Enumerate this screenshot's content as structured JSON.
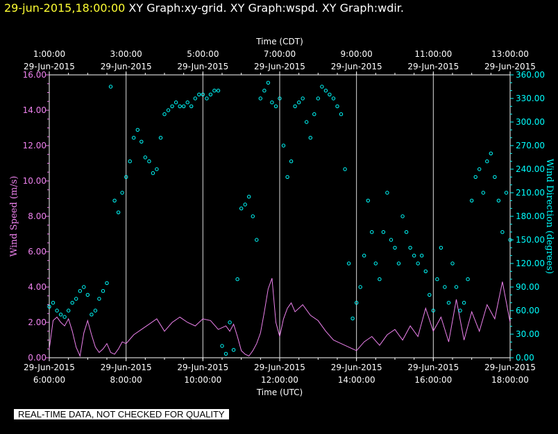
{
  "header": {
    "datetime": "29-jun-2015,18:00:00",
    "graphs": "XY Graph:xy-grid.  XY Graph:wspd.  XY Graph:wdir."
  },
  "notice": "REAL-TIME DATA, NOT CHECKED FOR QUALITY",
  "colors": {
    "speed": "#ee82ee",
    "direction": "#00ffff",
    "frame": "#ffffff",
    "header_date": "#ffff33"
  },
  "chart_data": {
    "type": "line",
    "grid": "vertical",
    "top_axis": {
      "title": "Time (CDT)",
      "ticks": [
        {
          "time": "1:00:00",
          "date": "29-Jun-2015"
        },
        {
          "time": "3:00:00",
          "date": "29-Jun-2015"
        },
        {
          "time": "5:00:00",
          "date": "29-Jun-2015"
        },
        {
          "time": "7:00:00",
          "date": "29-Jun-2015"
        },
        {
          "time": "9:00:00",
          "date": "29-Jun-2015"
        },
        {
          "time": "11:00:00",
          "date": "29-Jun-2015"
        },
        {
          "time": "13:00:00",
          "date": "29-Jun-2015"
        }
      ]
    },
    "bottom_axis": {
      "title": "Time (UTC)",
      "ticks": [
        {
          "date": "29-Jun-2015",
          "time": "6:00:00"
        },
        {
          "date": "29-Jun-2015",
          "time": "8:00:00"
        },
        {
          "date": "29-Jun-2015",
          "time": "10:00:00"
        },
        {
          "date": "29-Jun-2015",
          "time": "12:00:00"
        },
        {
          "date": "29-Jun-2015",
          "time": "14:00:00"
        },
        {
          "date": "29-Jun-2015",
          "time": "16:00:00"
        },
        {
          "date": "29-Jun-2015",
          "time": "18:00:00"
        }
      ]
    },
    "xlim_utc_hours": [
      6,
      18
    ],
    "left_axis": {
      "title": "Wind Speed (m/s)",
      "ylim": [
        0,
        16
      ],
      "ticks": [
        "0.00",
        "2.00",
        "4.00",
        "6.00",
        "8.00",
        "10.00",
        "12.00",
        "14.00",
        "16.00"
      ]
    },
    "right_axis": {
      "title": "Wind Direction (degrees)",
      "ylim": [
        0,
        360
      ],
      "ticks": [
        "0.00",
        "30.00",
        "60.00",
        "90.00",
        "120.00",
        "150.00",
        "180.00",
        "210.00",
        "240.00",
        "270.00",
        "300.00",
        "330.00",
        "360.00"
      ]
    },
    "series": [
      {
        "name": "Wind Speed",
        "style": "line",
        "axis": "left",
        "x": [
          6.0,
          6.1,
          6.2,
          6.3,
          6.4,
          6.5,
          6.6,
          6.7,
          6.8,
          6.9,
          7.0,
          7.1,
          7.2,
          7.3,
          7.4,
          7.5,
          7.6,
          7.7,
          7.8,
          7.9,
          8.0,
          8.2,
          8.4,
          8.6,
          8.8,
          9.0,
          9.2,
          9.4,
          9.6,
          9.8,
          10.0,
          10.2,
          10.4,
          10.6,
          10.7,
          10.8,
          10.9,
          11.0,
          11.1,
          11.2,
          11.3,
          11.4,
          11.5,
          11.6,
          11.7,
          11.8,
          11.9,
          12.0,
          12.1,
          12.2,
          12.3,
          12.4,
          12.6,
          12.8,
          13.0,
          13.2,
          13.4,
          13.6,
          13.8,
          14.0,
          14.2,
          14.4,
          14.6,
          14.8,
          15.0,
          15.2,
          15.4,
          15.6,
          15.8,
          16.0,
          16.2,
          16.4,
          16.6,
          16.8,
          17.0,
          17.2,
          17.4,
          17.6,
          17.8,
          18.0
        ],
        "y": [
          0.5,
          2.1,
          2.3,
          2.0,
          1.8,
          2.2,
          1.5,
          0.6,
          0.1,
          1.4,
          2.1,
          1.3,
          0.6,
          0.3,
          0.5,
          0.8,
          0.3,
          0.2,
          0.5,
          0.9,
          0.8,
          1.3,
          1.6,
          1.9,
          2.2,
          1.5,
          2.0,
          2.3,
          2.0,
          1.8,
          2.2,
          2.1,
          1.6,
          1.8,
          1.5,
          1.9,
          1.2,
          0.4,
          0.2,
          0.1,
          0.4,
          0.8,
          1.4,
          2.6,
          3.9,
          4.5,
          2.0,
          1.2,
          2.2,
          2.8,
          3.1,
          2.6,
          3.0,
          2.4,
          2.1,
          1.5,
          1.0,
          0.8,
          0.6,
          0.4,
          0.9,
          1.2,
          0.7,
          1.3,
          1.6,
          1.0,
          1.8,
          1.2,
          2.8,
          1.5,
          2.3,
          0.9,
          3.3,
          1.0,
          2.6,
          1.5,
          3.0,
          2.2,
          4.3,
          2.0
        ]
      },
      {
        "name": "Wind Direction",
        "style": "scatter",
        "axis": "right",
        "x": [
          6.0,
          6.1,
          6.2,
          6.3,
          6.4,
          6.5,
          6.6,
          6.7,
          6.8,
          6.9,
          7.0,
          7.1,
          7.2,
          7.3,
          7.4,
          7.5,
          7.6,
          7.7,
          7.8,
          7.9,
          8.0,
          8.1,
          8.2,
          8.3,
          8.4,
          8.5,
          8.6,
          8.7,
          8.8,
          8.9,
          9.0,
          9.1,
          9.2,
          9.3,
          9.4,
          9.5,
          9.6,
          9.7,
          9.8,
          9.9,
          10.0,
          10.1,
          10.2,
          10.3,
          10.4,
          10.5,
          10.6,
          10.7,
          10.8,
          10.9,
          11.0,
          11.1,
          11.2,
          11.3,
          11.4,
          11.5,
          11.6,
          11.7,
          11.8,
          11.9,
          12.0,
          12.1,
          12.2,
          12.3,
          12.4,
          12.5,
          12.6,
          12.7,
          12.8,
          12.9,
          13.0,
          13.1,
          13.2,
          13.3,
          13.4,
          13.5,
          13.6,
          13.7,
          13.8,
          13.9,
          14.0,
          14.1,
          14.2,
          14.3,
          14.4,
          14.5,
          14.6,
          14.7,
          14.8,
          14.9,
          15.0,
          15.1,
          15.2,
          15.3,
          15.4,
          15.5,
          15.6,
          15.7,
          15.8,
          15.9,
          16.0,
          16.1,
          16.2,
          16.3,
          16.4,
          16.5,
          16.6,
          16.7,
          16.8,
          16.9,
          17.0,
          17.1,
          17.2,
          17.3,
          17.4,
          17.5,
          17.6,
          17.7,
          17.8,
          17.9,
          18.0
        ],
        "y": [
          65,
          70,
          60,
          55,
          52,
          60,
          70,
          75,
          85,
          90,
          80,
          55,
          60,
          75,
          85,
          95,
          345,
          200,
          185,
          210,
          230,
          250,
          280,
          290,
          275,
          255,
          250,
          235,
          240,
          280,
          310,
          315,
          320,
          325,
          320,
          320,
          325,
          320,
          330,
          335,
          335,
          330,
          335,
          340,
          340,
          15,
          5,
          45,
          10,
          100,
          190,
          195,
          205,
          180,
          150,
          330,
          340,
          350,
          325,
          320,
          330,
          270,
          230,
          250,
          320,
          325,
          330,
          300,
          280,
          310,
          330,
          345,
          340,
          335,
          330,
          320,
          310,
          240,
          120,
          50,
          70,
          90,
          130,
          200,
          160,
          120,
          100,
          160,
          210,
          150,
          140,
          120,
          180,
          160,
          140,
          130,
          120,
          130,
          110,
          80,
          60,
          100,
          140,
          90,
          70,
          120,
          90,
          60,
          70,
          100,
          200,
          230,
          240,
          210,
          250,
          260,
          230,
          200,
          160,
          210,
          150
        ]
      }
    ]
  }
}
